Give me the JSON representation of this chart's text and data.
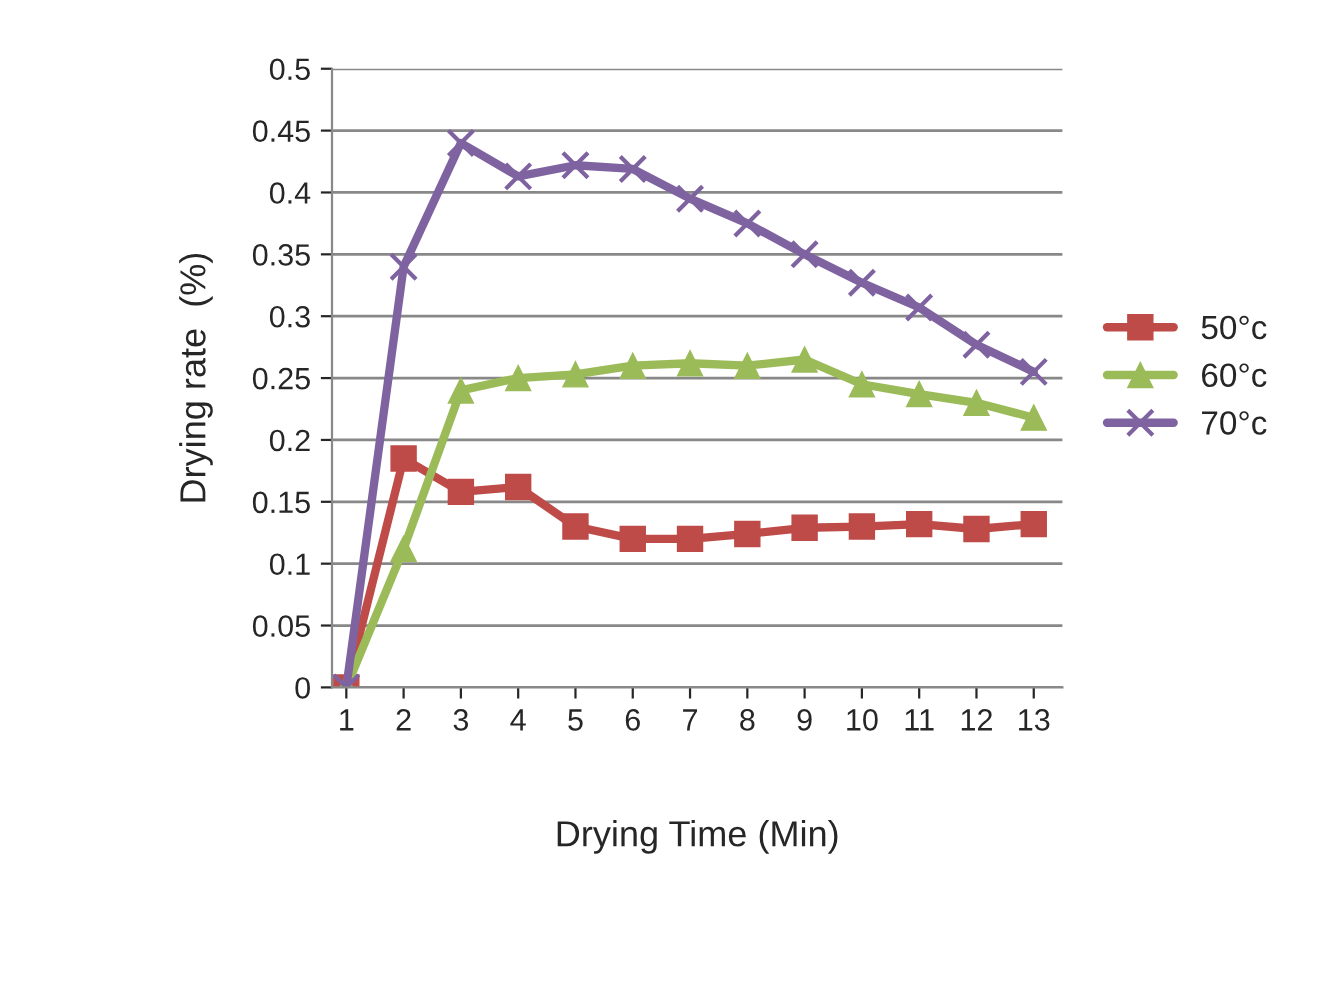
{
  "chart_data": {
    "type": "line",
    "xlabel": "Drying Time (Min)",
    "ylabel": "Drying rate  (%)",
    "categories": [
      "1",
      "2",
      "3",
      "4",
      "5",
      "6",
      "7",
      "8",
      "9",
      "10",
      "11",
      "12",
      "13"
    ],
    "series": [
      {
        "name": "50°c",
        "color": "#be4b48",
        "marker": "square",
        "values": [
          0,
          0.185,
          0.158,
          0.162,
          0.13,
          0.12,
          0.12,
          0.124,
          0.129,
          0.13,
          0.132,
          0.128,
          0.132
        ]
      },
      {
        "name": "60°c",
        "color": "#9bbb59",
        "marker": "triangle",
        "values": [
          0,
          0.112,
          0.24,
          0.25,
          0.253,
          0.26,
          0.262,
          0.26,
          0.265,
          0.245,
          0.237,
          0.23,
          0.218
        ]
      },
      {
        "name": "70°c",
        "color": "#7f63a1",
        "marker": "cross",
        "values": [
          0,
          0.34,
          0.44,
          0.413,
          0.422,
          0.419,
          0.395,
          0.375,
          0.35,
          0.327,
          0.307,
          0.277,
          0.255
        ]
      }
    ],
    "ylim": [
      0,
      0.5
    ],
    "yticks": [
      0,
      0.05,
      0.1,
      0.15,
      0.2,
      0.25,
      0.3,
      0.35,
      0.4,
      0.45,
      0.5
    ],
    "grid": "y",
    "legend": "right"
  }
}
